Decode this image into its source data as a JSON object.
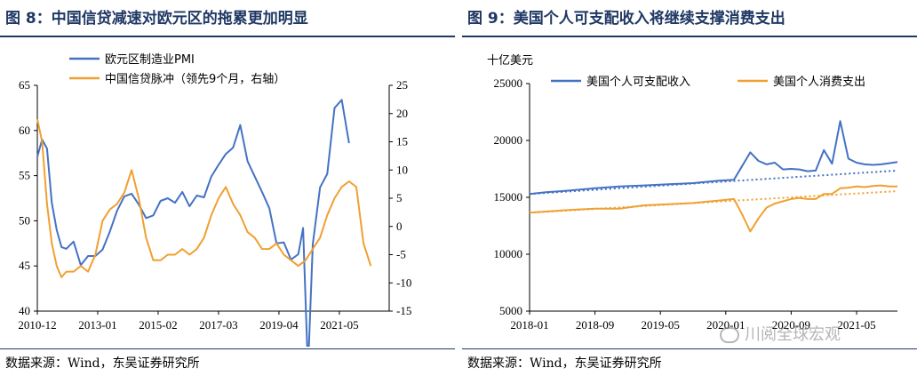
{
  "left": {
    "title": "图 8：中国信贷减速对欧元区的拖累更加明显",
    "source": "数据来源：Wind，东吴证券研究所"
  },
  "right": {
    "title": "图 9：美国个人可支配收入将继续支撑消费支出",
    "source": "数据来源：Wind，东吴证券研究所"
  },
  "watermark": "川阅全球宏观",
  "chart_data": [
    {
      "type": "line",
      "title": "图 8：中国信贷减速对欧元区的拖累更加明显",
      "x_tick_labels": [
        "2010-12",
        "2013-01",
        "2015-02",
        "2017-03",
        "2019-04",
        "2021-05"
      ],
      "x_range": [
        "2010-12",
        "2022-07"
      ],
      "ylim": [
        40,
        65
      ],
      "y_ticks": [
        40,
        45,
        50,
        55,
        60,
        65
      ],
      "y2lim": [
        -15,
        25
      ],
      "y2_ticks": [
        -15,
        -10,
        -5,
        0,
        5,
        10,
        15,
        20,
        25
      ],
      "grid": false,
      "legend": "top-left",
      "series": [
        {
          "name": "欧元区制造业PMI",
          "axis": "left",
          "color": "#4472c4",
          "x": [
            "2010-12",
            "2011-02",
            "2011-04",
            "2011-06",
            "2011-08",
            "2011-10",
            "2011-12",
            "2012-03",
            "2012-06",
            "2012-09",
            "2012-12",
            "2013-03",
            "2013-06",
            "2013-09",
            "2013-12",
            "2014-03",
            "2014-06",
            "2014-09",
            "2014-12",
            "2015-03",
            "2015-06",
            "2015-09",
            "2015-12",
            "2016-03",
            "2016-06",
            "2016-09",
            "2016-12",
            "2017-03",
            "2017-06",
            "2017-09",
            "2017-12",
            "2018-03",
            "2018-06",
            "2018-09",
            "2018-12",
            "2019-03",
            "2019-06",
            "2019-09",
            "2019-12",
            "2020-02",
            "2020-04",
            "2020-06",
            "2020-09",
            "2020-12",
            "2021-03",
            "2021-06",
            "2021-09"
          ],
          "values": [
            57.1,
            59.0,
            58.0,
            52.0,
            49.0,
            47.1,
            46.9,
            47.7,
            45.1,
            46.1,
            46.1,
            46.8,
            48.8,
            51.1,
            52.7,
            53.0,
            51.8,
            50.3,
            50.6,
            52.2,
            52.5,
            52.0,
            53.2,
            51.6,
            52.8,
            52.6,
            54.9,
            56.2,
            57.4,
            58.1,
            60.6,
            56.6,
            54.9,
            53.2,
            51.4,
            47.5,
            47.6,
            45.7,
            46.3,
            49.2,
            33.4,
            47.4,
            53.7,
            55.2,
            62.5,
            63.4,
            58.6
          ]
        },
        {
          "name": "中国信贷脉冲（领先9个月，右轴）",
          "axis": "right",
          "color": "#f0a030",
          "x": [
            "2010-12",
            "2011-02",
            "2011-04",
            "2011-06",
            "2011-08",
            "2011-10",
            "2011-12",
            "2012-03",
            "2012-06",
            "2012-09",
            "2012-12",
            "2013-03",
            "2013-06",
            "2013-09",
            "2013-12",
            "2014-03",
            "2014-06",
            "2014-09",
            "2014-12",
            "2015-03",
            "2015-06",
            "2015-09",
            "2015-12",
            "2016-03",
            "2016-06",
            "2016-09",
            "2016-12",
            "2017-03",
            "2017-06",
            "2017-09",
            "2017-12",
            "2018-03",
            "2018-06",
            "2018-09",
            "2018-12",
            "2019-03",
            "2019-06",
            "2019-09",
            "2019-12",
            "2020-03",
            "2020-06",
            "2020-09",
            "2020-12",
            "2021-03",
            "2021-06",
            "2021-09",
            "2021-12",
            "2022-03",
            "2022-06"
          ],
          "values": [
            19,
            15,
            4,
            -3,
            -7,
            -9,
            -8,
            -8,
            -7,
            -8,
            -5,
            1,
            3,
            4,
            6,
            10,
            5,
            -2,
            -6,
            -6,
            -5,
            -5,
            -4,
            -5,
            -4,
            -2,
            2,
            5,
            7,
            4,
            2,
            -1,
            -2,
            -4,
            -4,
            -3,
            -5,
            -6,
            -7,
            -6,
            -4,
            -2,
            2,
            5,
            7,
            8,
            7,
            -3,
            -7
          ]
        }
      ]
    },
    {
      "type": "line",
      "title": "图 9：美国个人可支配收入将继续支撑消费支出",
      "ylabel": "十亿美元",
      "x_tick_labels": [
        "2018-01",
        "2018-09",
        "2019-05",
        "2020-01",
        "2020-09",
        "2021-05"
      ],
      "x_range": [
        "2018-01",
        "2021-10"
      ],
      "ylim": [
        5000,
        25000
      ],
      "y_ticks": [
        5000,
        10000,
        15000,
        20000,
        25000
      ],
      "grid": false,
      "legend": "top",
      "series": [
        {
          "name": "美国个人可支配收入",
          "color": "#4472c4",
          "x": [
            "2018-01",
            "2018-03",
            "2018-06",
            "2018-09",
            "2018-12",
            "2019-03",
            "2019-06",
            "2019-09",
            "2019-12",
            "2020-02",
            "2020-04",
            "2020-05",
            "2020-06",
            "2020-07",
            "2020-08",
            "2020-09",
            "2020-10",
            "2020-11",
            "2020-12",
            "2021-01",
            "2021-02",
            "2021-03",
            "2021-04",
            "2021-05",
            "2021-06",
            "2021-07",
            "2021-08",
            "2021-09",
            "2021-10"
          ],
          "values": [
            15300,
            15450,
            15600,
            15800,
            15950,
            16050,
            16150,
            16250,
            16450,
            16550,
            18950,
            18200,
            17900,
            18050,
            17450,
            17500,
            17450,
            17300,
            17350,
            19150,
            17950,
            21700,
            18400,
            18050,
            17900,
            17850,
            17900,
            18000,
            18100
          ]
        },
        {
          "name": "美国个人消费支出",
          "color": "#f0a030",
          "x": [
            "2018-01",
            "2018-03",
            "2018-06",
            "2018-09",
            "2018-12",
            "2019-03",
            "2019-06",
            "2019-09",
            "2019-12",
            "2020-02",
            "2020-03",
            "2020-04",
            "2020-05",
            "2020-06",
            "2020-07",
            "2020-08",
            "2020-09",
            "2020-10",
            "2020-11",
            "2020-12",
            "2021-01",
            "2021-02",
            "2021-03",
            "2021-04",
            "2021-05",
            "2021-06",
            "2021-07",
            "2021-08",
            "2021-09",
            "2021-10"
          ],
          "values": [
            13650,
            13750,
            13900,
            14000,
            14000,
            14300,
            14400,
            14500,
            14700,
            14850,
            13500,
            12000,
            13150,
            14100,
            14450,
            14650,
            14850,
            14950,
            14850,
            14850,
            15300,
            15300,
            15800,
            15850,
            15950,
            15900,
            16000,
            16050,
            15950,
            15950
          ]
        },
        {
          "name": "income-trend",
          "color": "#4472c4",
          "dashed": true,
          "x": [
            "2018-01",
            "2021-10"
          ],
          "values": [
            15300,
            17350
          ]
        },
        {
          "name": "consumption-trend",
          "color": "#f0a030",
          "dashed": true,
          "x": [
            "2018-01",
            "2021-10"
          ],
          "values": [
            13650,
            15550
          ]
        }
      ]
    }
  ]
}
